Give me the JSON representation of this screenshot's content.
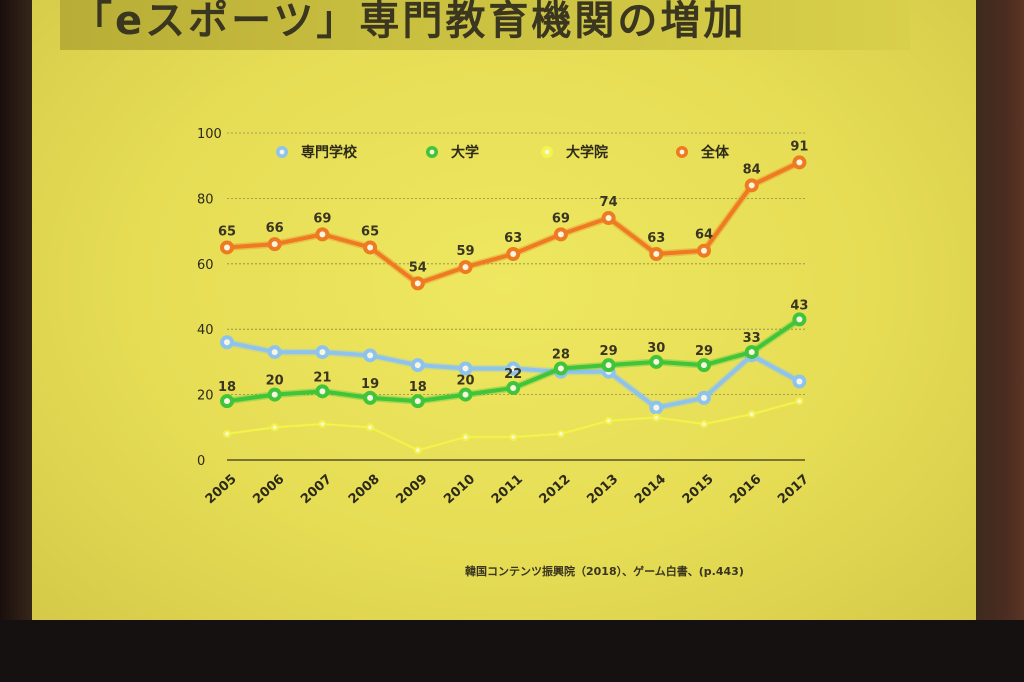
{
  "slide": {
    "title": "「eスポーツ」専門教育機関の増加",
    "source": "韓国コンテンツ振興院（2018）、ゲーム白書、(p.443)"
  },
  "colors": {
    "screen_bg": "#e8df58",
    "senmon": "#8ec3ee",
    "daigaku": "#3fc43a",
    "daigakuin": "#f4f44a",
    "zentai": "#ee7a22"
  },
  "chart_data": {
    "type": "line",
    "categories": [
      "2005",
      "2006",
      "2007",
      "2008",
      "2009",
      "2010",
      "2011",
      "2012",
      "2013",
      "2014",
      "2015",
      "2016",
      "2017"
    ],
    "ylim": [
      0,
      100
    ],
    "yticks": [
      0,
      20,
      40,
      60,
      80,
      100
    ],
    "grid": true,
    "legend_position": "top",
    "series": [
      {
        "name": "専門学校",
        "color": "#8ec3ee",
        "values": [
          36,
          33,
          33,
          32,
          29,
          28,
          28,
          27,
          27,
          16,
          19,
          32,
          24
        ],
        "labels": []
      },
      {
        "name": "大学",
        "color": "#3fc43a",
        "values": [
          18,
          20,
          21,
          19,
          18,
          20,
          22,
          28,
          29,
          30,
          29,
          33,
          43
        ],
        "labels": [
          "18",
          "20",
          "21",
          "19",
          "18",
          "20",
          "22",
          "28",
          "29",
          "30",
          "29",
          "33",
          "43"
        ]
      },
      {
        "name": "大学院",
        "color": "#f4f44a",
        "values": [
          8,
          10,
          11,
          10,
          3,
          7,
          7,
          8,
          12,
          13,
          11,
          14,
          18
        ],
        "labels": []
      },
      {
        "name": "全体",
        "color": "#ee7a22",
        "values": [
          65,
          66,
          69,
          65,
          54,
          59,
          63,
          69,
          74,
          63,
          64,
          84,
          91
        ],
        "labels": [
          "65",
          "66",
          "69",
          "65",
          "54",
          "59",
          "63",
          "69",
          "74",
          "63",
          "64",
          "84",
          "91"
        ]
      }
    ]
  }
}
